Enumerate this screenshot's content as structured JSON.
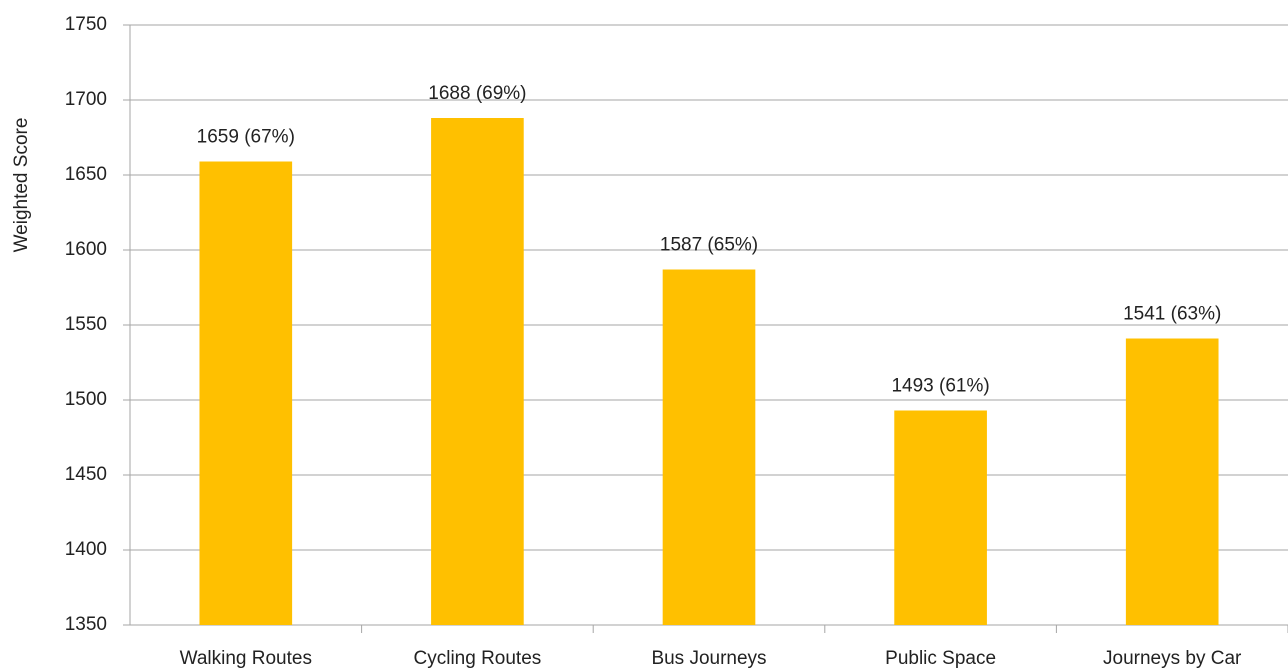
{
  "chart_data": {
    "type": "bar",
    "y_label": "Weighted Score",
    "categories": [
      "Walking Routes",
      "Cycling Routes",
      "Bus Journeys",
      "Public Space",
      "Journeys by Car"
    ],
    "values": [
      1659,
      1688,
      1587,
      1493,
      1541
    ],
    "value_labels": [
      "1659 (67%)",
      "1688 (69%)",
      "1587 (65%)",
      "1493 (61%)",
      "1541 (63%)"
    ],
    "color": "#ffc000",
    "ylim": [
      1350,
      1750
    ],
    "yticks": [
      1350,
      1400,
      1450,
      1500,
      1550,
      1600,
      1650,
      1700,
      1750
    ],
    "grid": true
  }
}
